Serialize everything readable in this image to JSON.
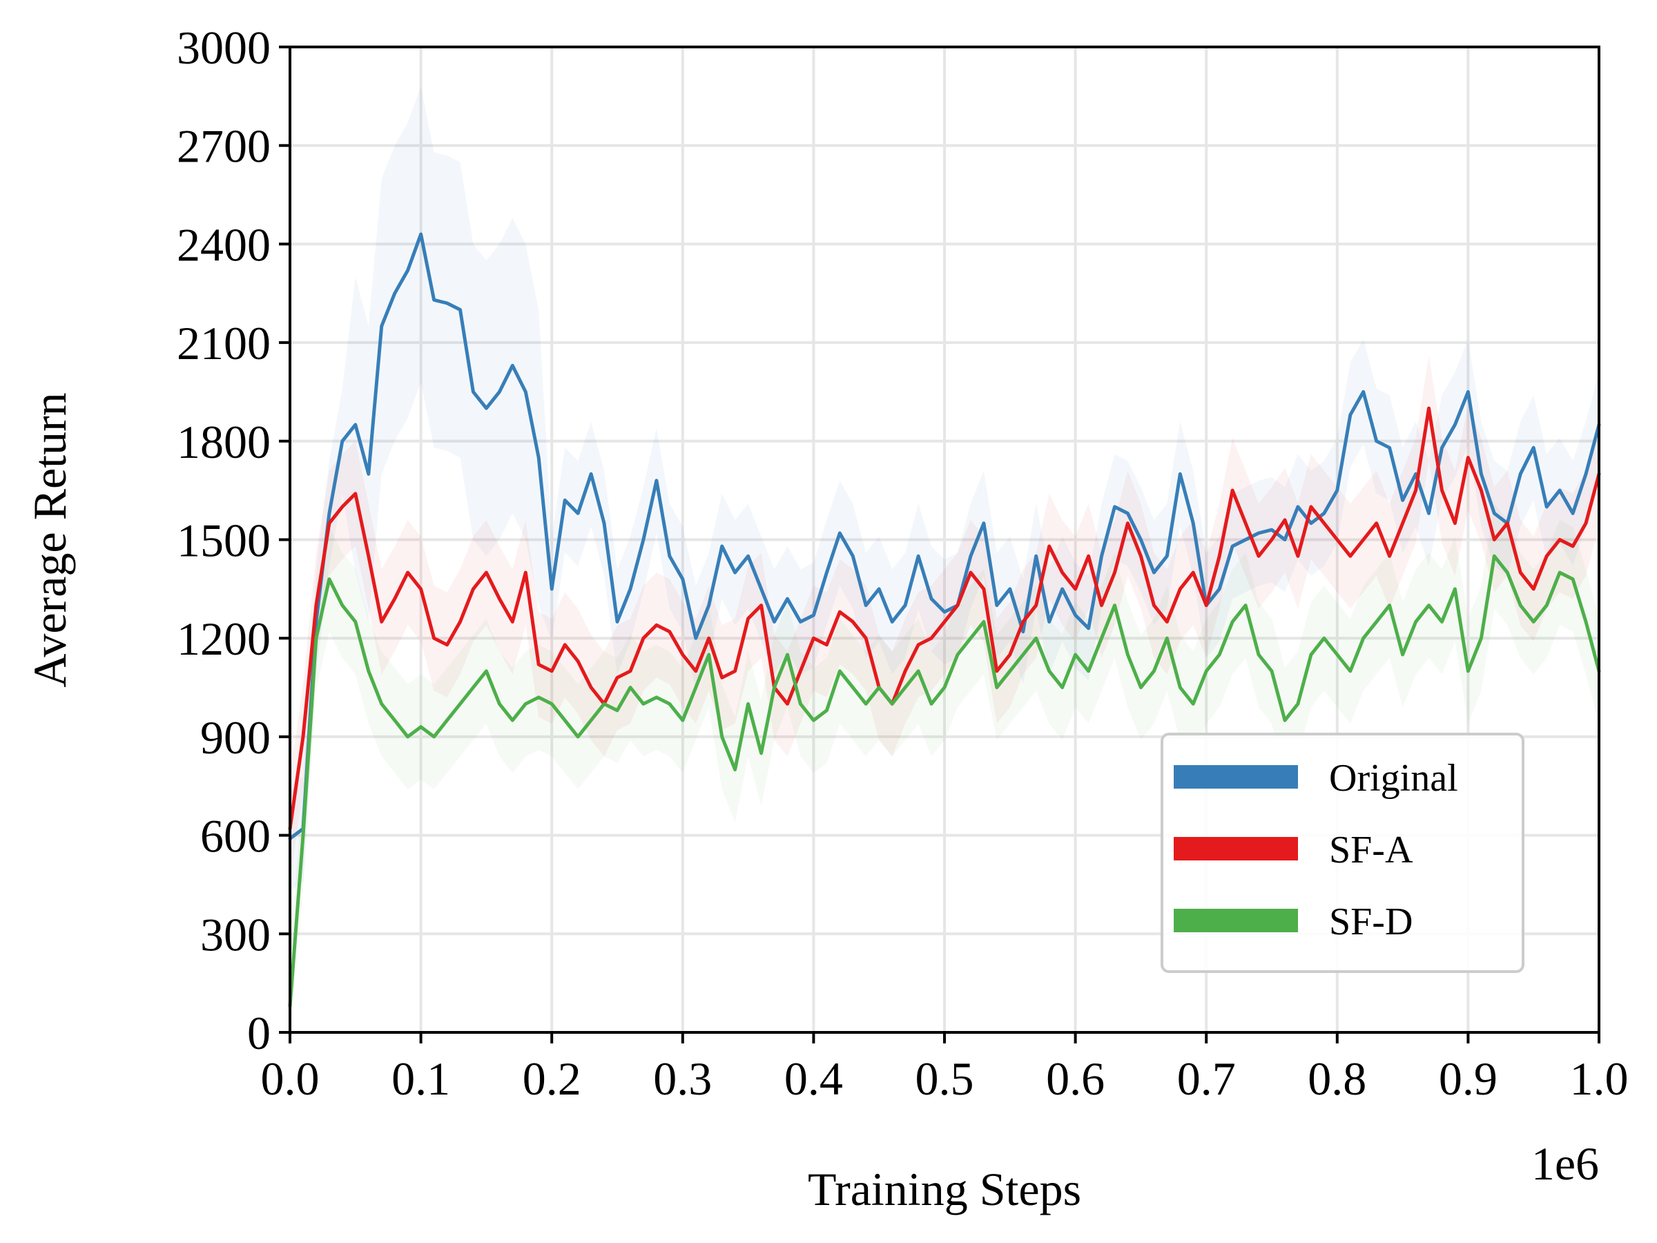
{
  "chart_data": {
    "type": "line",
    "title": "",
    "xlabel": "Training Steps",
    "ylabel": "Average Return",
    "x_offset_label": "1e6",
    "xlim": [
      0.0,
      1.0
    ],
    "ylim": [
      0,
      3000
    ],
    "x_ticks": [
      0.0,
      0.1,
      0.2,
      0.3,
      0.4,
      0.5,
      0.6,
      0.7,
      0.8,
      0.9,
      1.0
    ],
    "x_tick_labels": [
      "0.0",
      "0.1",
      "0.2",
      "0.3",
      "0.4",
      "0.5",
      "0.6",
      "0.7",
      "0.8",
      "0.9",
      "1.0"
    ],
    "y_ticks": [
      0,
      300,
      600,
      900,
      1200,
      1500,
      1800,
      2100,
      2400,
      2700,
      3000
    ],
    "y_tick_labels": [
      "0",
      "300",
      "600",
      "900",
      "1200",
      "1500",
      "1800",
      "2100",
      "2400",
      "2700",
      "3000"
    ],
    "grid": true,
    "legend_position": "lower-right",
    "x": [
      0.0,
      0.01,
      0.02,
      0.03,
      0.04,
      0.05,
      0.06,
      0.07,
      0.08,
      0.09,
      0.1,
      0.11,
      0.12,
      0.13,
      0.14,
      0.15,
      0.16,
      0.17,
      0.18,
      0.19,
      0.2,
      0.21,
      0.22,
      0.23,
      0.24,
      0.25,
      0.26,
      0.27,
      0.28,
      0.29,
      0.3,
      0.31,
      0.32,
      0.33,
      0.34,
      0.35,
      0.36,
      0.37,
      0.38,
      0.39,
      0.4,
      0.41,
      0.42,
      0.43,
      0.44,
      0.45,
      0.46,
      0.47,
      0.48,
      0.49,
      0.5,
      0.51,
      0.52,
      0.53,
      0.54,
      0.55,
      0.56,
      0.57,
      0.58,
      0.59,
      0.6,
      0.61,
      0.62,
      0.63,
      0.64,
      0.65,
      0.66,
      0.67,
      0.68,
      0.69,
      0.7,
      0.71,
      0.72,
      0.73,
      0.74,
      0.75,
      0.76,
      0.77,
      0.78,
      0.79,
      0.8,
      0.81,
      0.82,
      0.83,
      0.84,
      0.85,
      0.86,
      0.87,
      0.88,
      0.89,
      0.9,
      0.91,
      0.92,
      0.93,
      0.94,
      0.95,
      0.96,
      0.97,
      0.98,
      0.99,
      1.0
    ],
    "series": [
      {
        "name": "Original",
        "color": "#377eb8",
        "values": [
          590,
          620,
          1250,
          1580,
          1800,
          1850,
          1700,
          2150,
          2250,
          2320,
          2430,
          2230,
          2220,
          2200,
          1950,
          1900,
          1950,
          2030,
          1950,
          1750,
          1350,
          1620,
          1580,
          1700,
          1550,
          1250,
          1350,
          1500,
          1680,
          1450,
          1380,
          1200,
          1300,
          1480,
          1400,
          1450,
          1350,
          1250,
          1320,
          1250,
          1270,
          1400,
          1520,
          1450,
          1300,
          1350,
          1250,
          1300,
          1450,
          1320,
          1280,
          1300,
          1450,
          1550,
          1300,
          1350,
          1220,
          1450,
          1250,
          1350,
          1270,
          1230,
          1450,
          1600,
          1580,
          1500,
          1400,
          1450,
          1700,
          1550,
          1300,
          1350,
          1480,
          1500,
          1520,
          1530,
          1500,
          1600,
          1550,
          1580,
          1650,
          1880,
          1950,
          1800,
          1780,
          1620,
          1700,
          1580,
          1780,
          1850,
          1950,
          1700,
          1580,
          1550,
          1700,
          1780,
          1600,
          1650,
          1580,
          1700,
          1850
        ]
      },
      {
        "name": "SF-A",
        "color": "#e41a1c",
        "values": [
          620,
          900,
          1300,
          1550,
          1600,
          1640,
          1450,
          1250,
          1320,
          1400,
          1350,
          1200,
          1180,
          1250,
          1350,
          1400,
          1320,
          1250,
          1400,
          1120,
          1100,
          1180,
          1130,
          1050,
          1000,
          1080,
          1100,
          1200,
          1240,
          1220,
          1150,
          1100,
          1200,
          1080,
          1100,
          1260,
          1300,
          1050,
          1000,
          1100,
          1200,
          1180,
          1280,
          1250,
          1200,
          1050,
          1000,
          1100,
          1180,
          1200,
          1250,
          1300,
          1400,
          1350,
          1100,
          1150,
          1250,
          1300,
          1480,
          1400,
          1350,
          1450,
          1300,
          1400,
          1550,
          1450,
          1300,
          1250,
          1350,
          1400,
          1300,
          1450,
          1650,
          1550,
          1450,
          1500,
          1560,
          1450,
          1600,
          1550,
          1500,
          1450,
          1500,
          1550,
          1450,
          1550,
          1650,
          1900,
          1650,
          1550,
          1750,
          1650,
          1500,
          1550,
          1400,
          1350,
          1450,
          1500,
          1480,
          1550,
          1700
        ]
      },
      {
        "name": "SF-D",
        "color": "#4daf4a",
        "values": [
          80,
          600,
          1200,
          1380,
          1300,
          1250,
          1100,
          1000,
          950,
          900,
          930,
          900,
          950,
          1000,
          1050,
          1100,
          1000,
          950,
          1000,
          1020,
          1000,
          950,
          900,
          950,
          1000,
          980,
          1050,
          1000,
          1020,
          1000,
          950,
          1050,
          1150,
          900,
          800,
          1000,
          850,
          1050,
          1150,
          1000,
          950,
          980,
          1100,
          1050,
          1000,
          1050,
          1000,
          1050,
          1100,
          1000,
          1050,
          1150,
          1200,
          1250,
          1050,
          1100,
          1150,
          1200,
          1100,
          1050,
          1150,
          1100,
          1200,
          1300,
          1150,
          1050,
          1100,
          1200,
          1050,
          1000,
          1100,
          1150,
          1250,
          1300,
          1150,
          1100,
          950,
          1000,
          1150,
          1200,
          1150,
          1100,
          1200,
          1250,
          1300,
          1150,
          1250,
          1300,
          1250,
          1350,
          1100,
          1200,
          1450,
          1400,
          1300,
          1250,
          1300,
          1400,
          1380,
          1250,
          1100
        ]
      }
    ]
  }
}
